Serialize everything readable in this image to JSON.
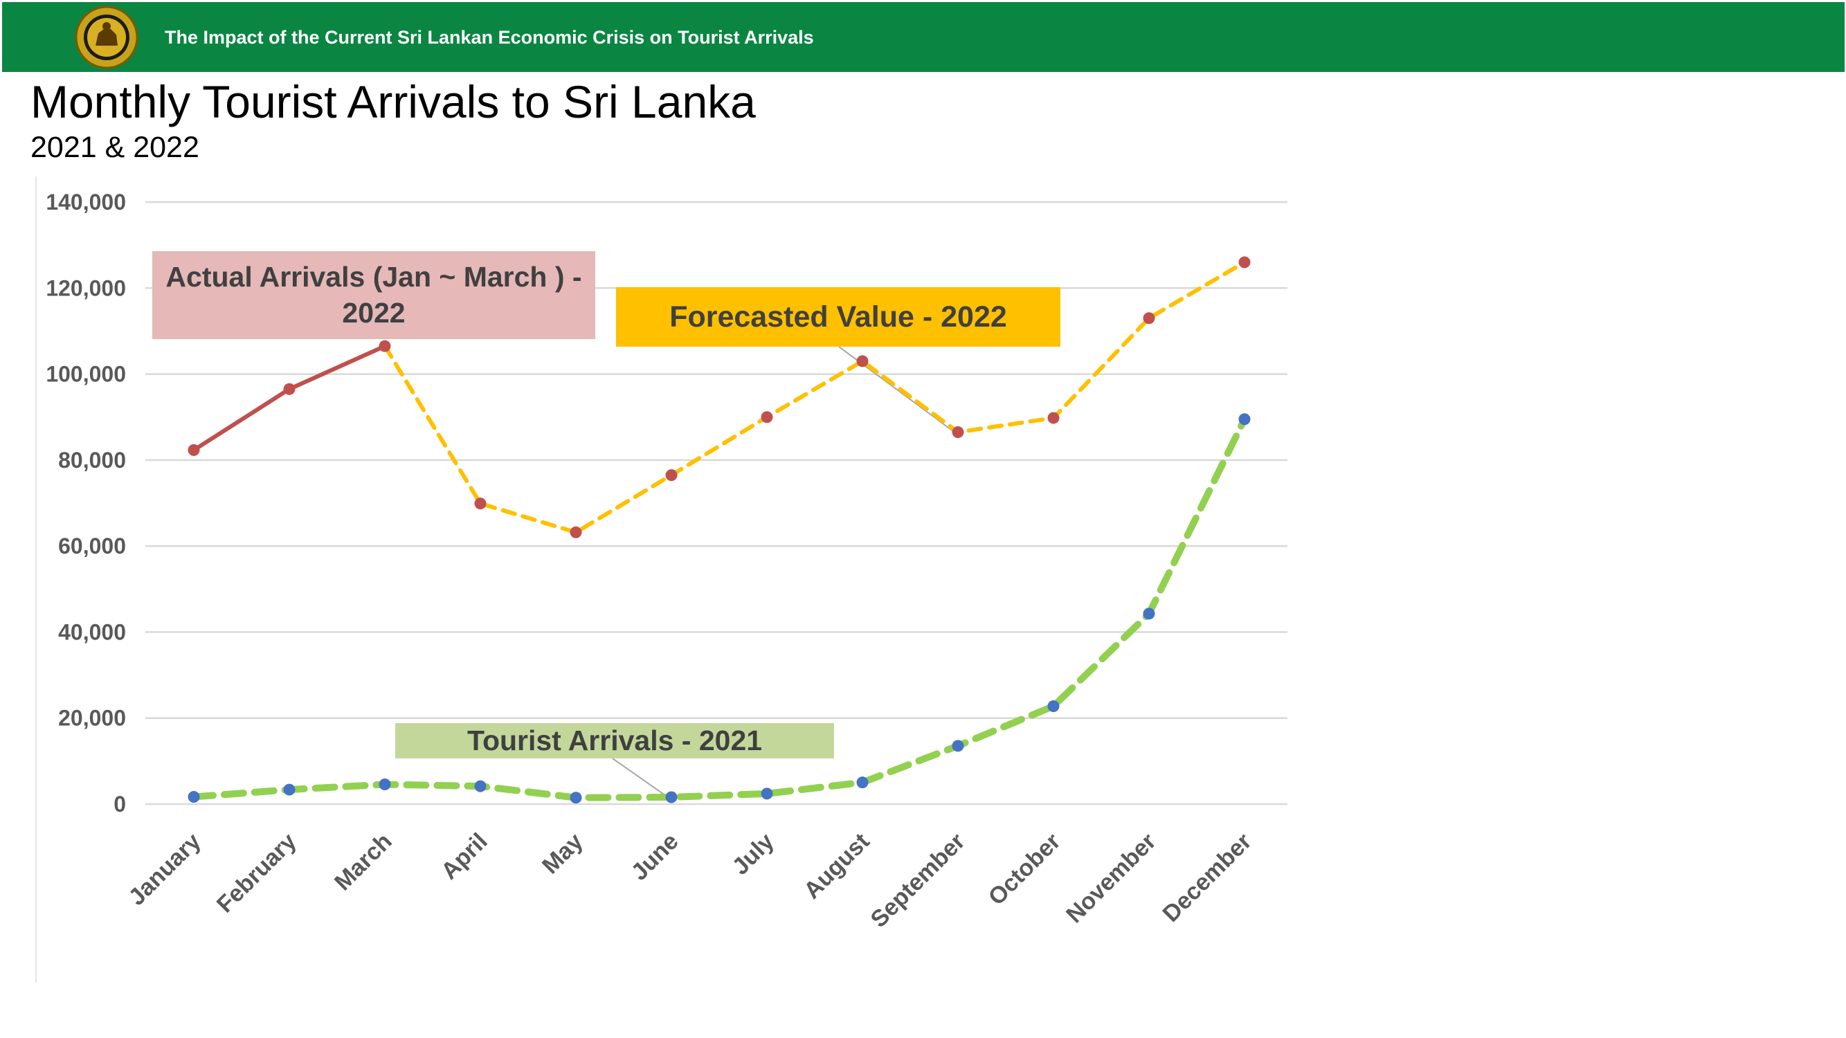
{
  "header": {
    "banner_title": "The Impact of the Current Sri Lankan Economic Crisis on Tourist Arrivals",
    "logo_icon": "central-bank-seal-icon",
    "banner_color": "#0a8642"
  },
  "page": {
    "title": "Monthly Tourist Arrivals to Sri Lanka",
    "subtitle": "2021 & 2022"
  },
  "callouts": {
    "actual": "Actual Arrivals (Jan ~ March ) - 2022",
    "forecast": "Forecasted Value - 2022",
    "arrivals_2021": "Tourist Arrivals - 2021"
  },
  "chart_data": {
    "type": "line",
    "title": "Monthly Tourist Arrivals to Sri Lanka",
    "subtitle": "2021 & 2022",
    "categories": [
      "January",
      "February",
      "March",
      "April",
      "May",
      "June",
      "July",
      "August",
      "September",
      "October",
      "November",
      "December"
    ],
    "ylim": [
      0,
      140000
    ],
    "yticks": [
      0,
      20000,
      40000,
      60000,
      80000,
      100000,
      120000,
      140000
    ],
    "ytick_labels": [
      "0",
      "20,000",
      "40,000",
      "60,000",
      "80,000",
      "100,000",
      "120,000",
      "140,000"
    ],
    "grid": true,
    "series": [
      {
        "key": "actual_2022",
        "values": [
          82327,
          96507,
          106500,
          null,
          null,
          null,
          null,
          null,
          null,
          null,
          null,
          null
        ],
        "color": "#c0504d",
        "marker_color": "#c0504d",
        "style": "solid"
      },
      {
        "key": "forecast_2022",
        "values": [
          null,
          null,
          106500,
          69900,
          63200,
          76500,
          90000,
          103000,
          86500,
          89800,
          113000,
          126000
        ],
        "color": "#ffc000",
        "marker_color": "#c0504d",
        "style": "dashed"
      },
      {
        "key": "arrivals_2021",
        "values": [
          1682,
          3366,
          4581,
          4168,
          1497,
          1614,
          2429,
          5040,
          13547,
          22771,
          44294,
          89506
        ],
        "color": "#92d050",
        "marker_color": "#4472c4",
        "style": "dashed"
      }
    ]
  }
}
